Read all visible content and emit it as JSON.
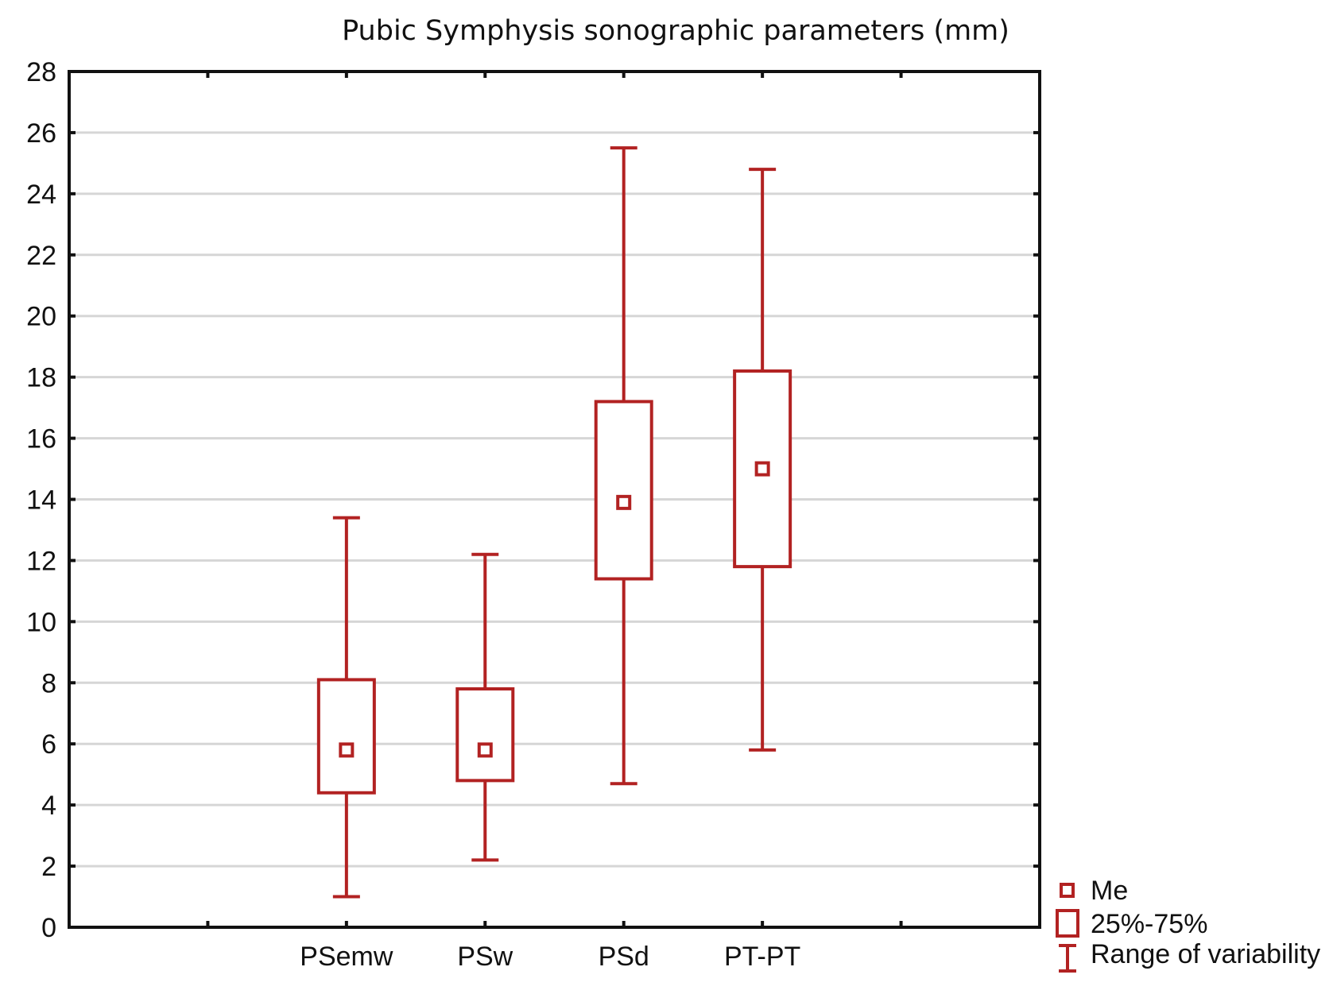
{
  "chart_data": {
    "type": "boxplot",
    "title": "Pubic Symphysis sonographic parameters (mm)",
    "xlabel": "",
    "ylabel": "",
    "ylim": [
      0,
      28
    ],
    "yticks": [
      0,
      2,
      4,
      6,
      8,
      10,
      12,
      14,
      16,
      18,
      20,
      22,
      24,
      26,
      28
    ],
    "grid": true,
    "legend_position": "bottom-right outside",
    "categories": [
      "PSemw",
      "PSw",
      "PSd",
      "PT-PT"
    ],
    "series": [
      {
        "category": "PSemw",
        "min": 1.0,
        "q1": 4.4,
        "median": 5.8,
        "q3": 8.1,
        "max": 13.4
      },
      {
        "category": "PSw",
        "min": 2.2,
        "q1": 4.8,
        "median": 5.8,
        "q3": 7.8,
        "max": 12.2
      },
      {
        "category": "PSd",
        "min": 4.7,
        "q1": 11.4,
        "median": 13.9,
        "q3": 17.2,
        "max": 25.5
      },
      {
        "category": "PT-PT",
        "min": 5.8,
        "q1": 11.8,
        "median": 15.0,
        "q3": 18.2,
        "max": 24.8
      }
    ],
    "legend": [
      {
        "symbol": "median",
        "label": "Me"
      },
      {
        "symbol": "box",
        "label": "25%-75%"
      },
      {
        "symbol": "whisker",
        "label": "Range of variability"
      }
    ],
    "colors": {
      "series": "#b22222",
      "grid": "#d6d6d6",
      "axis": "#111111"
    }
  }
}
